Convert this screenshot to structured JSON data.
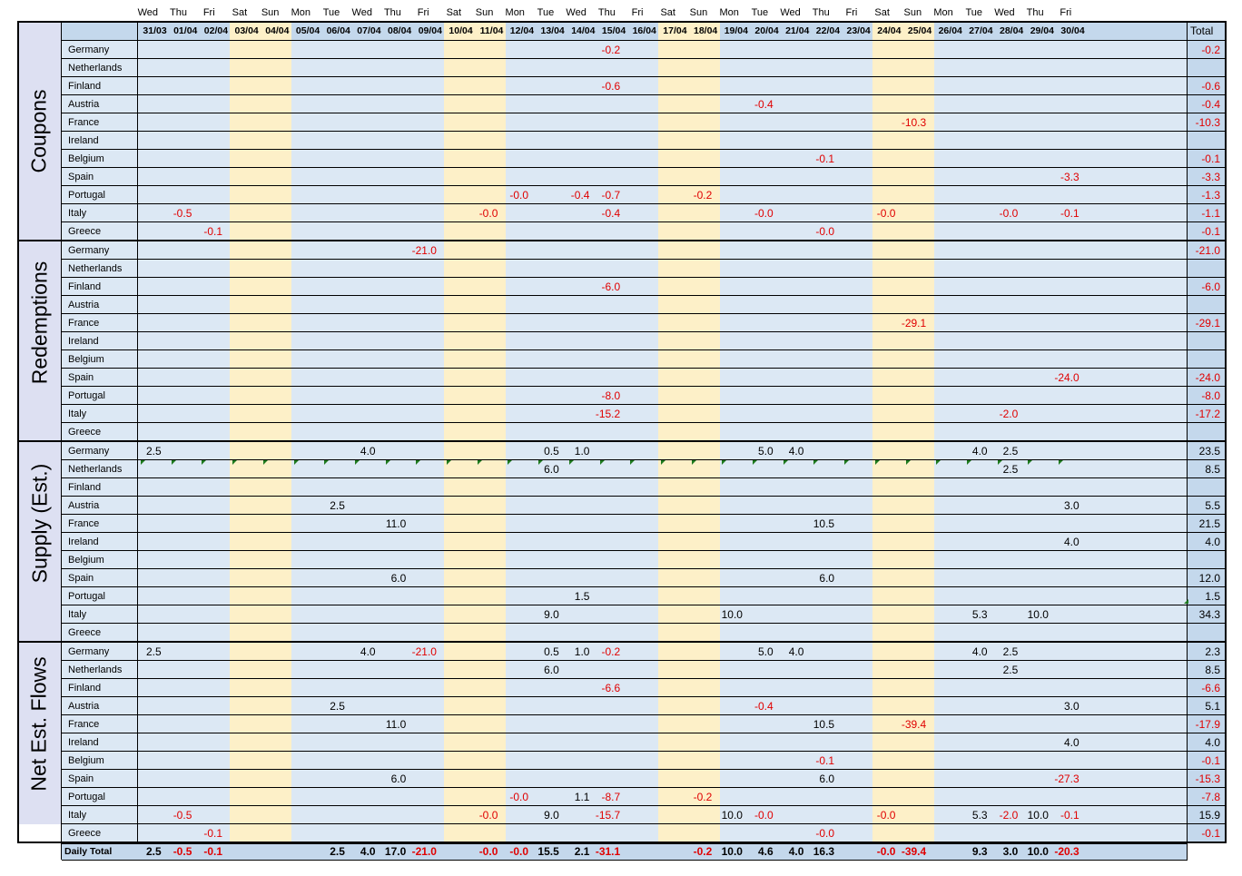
{
  "columns": [
    {
      "day": "Wed",
      "date": "31/03",
      "weekend": false
    },
    {
      "day": "Thu",
      "date": "01/04",
      "weekend": false
    },
    {
      "day": "Fri",
      "date": "02/04",
      "weekend": false
    },
    {
      "day": "Sat",
      "date": "03/04",
      "weekend": true
    },
    {
      "day": "Sun",
      "date": "04/04",
      "weekend": true
    },
    {
      "day": "Mon",
      "date": "05/04",
      "weekend": false
    },
    {
      "day": "Tue",
      "date": "06/04",
      "weekend": false
    },
    {
      "day": "Wed",
      "date": "07/04",
      "weekend": false
    },
    {
      "day": "Thu",
      "date": "08/04",
      "weekend": false
    },
    {
      "day": "Fri",
      "date": "09/04",
      "weekend": false
    },
    {
      "day": "Sat",
      "date": "10/04",
      "weekend": true
    },
    {
      "day": "Sun",
      "date": "11/04",
      "weekend": true
    },
    {
      "day": "Mon",
      "date": "12/04",
      "weekend": false
    },
    {
      "day": "Tue",
      "date": "13/04",
      "weekend": false
    },
    {
      "day": "Wed",
      "date": "14/04",
      "weekend": false
    },
    {
      "day": "Thu",
      "date": "15/04",
      "weekend": false
    },
    {
      "day": "Fri",
      "date": "16/04",
      "weekend": false
    },
    {
      "day": "Sat",
      "date": "17/04",
      "weekend": true
    },
    {
      "day": "Sun",
      "date": "18/04",
      "weekend": true
    },
    {
      "day": "Mon",
      "date": "19/04",
      "weekend": false
    },
    {
      "day": "Tue",
      "date": "20/04",
      "weekend": false
    },
    {
      "day": "Wed",
      "date": "21/04",
      "weekend": false
    },
    {
      "day": "Thu",
      "date": "22/04",
      "weekend": false
    },
    {
      "day": "Fri",
      "date": "23/04",
      "weekend": false
    },
    {
      "day": "Sat",
      "date": "24/04",
      "weekend": true
    },
    {
      "day": "Sun",
      "date": "25/04",
      "weekend": true
    },
    {
      "day": "Mon",
      "date": "26/04",
      "weekend": false
    },
    {
      "day": "Tue",
      "date": "27/04",
      "weekend": false
    },
    {
      "day": "Wed",
      "date": "28/04",
      "weekend": false
    },
    {
      "day": "Thu",
      "date": "29/04",
      "weekend": false
    },
    {
      "day": "Fri",
      "date": "30/04",
      "weekend": false
    }
  ],
  "total_header": "Total",
  "countries": [
    "Germany",
    "Netherlands",
    "Finland",
    "Austria",
    "France",
    "Ireland",
    "Belgium",
    "Spain",
    "Portugal",
    "Italy",
    "Greece"
  ],
  "sections": [
    {
      "label": "Coupons",
      "rows": [
        {
          "cells": {
            "15": "-0.2"
          },
          "total": "-0.2"
        },
        {
          "cells": {},
          "total": ""
        },
        {
          "cells": {
            "15": "-0.6"
          },
          "total": "-0.6"
        },
        {
          "cells": {
            "20": "-0.4"
          },
          "total": "-0.4"
        },
        {
          "cells": {
            "25": "-10.3"
          },
          "total": "-10.3"
        },
        {
          "cells": {},
          "total": ""
        },
        {
          "cells": {
            "22": "-0.1"
          },
          "total": "-0.1"
        },
        {
          "cells": {
            "30": "-3.3"
          },
          "total": "-3.3"
        },
        {
          "cells": {
            "12": "-0.0",
            "14": "-0.4",
            "15": "-0.7",
            "18": "-0.2"
          },
          "total": "-1.3"
        },
        {
          "cells": {
            "1": "-0.5",
            "11": "-0.0",
            "15": "-0.4",
            "20": "-0.0",
            "24": "-0.0",
            "28": "-0.0",
            "30": "-0.1"
          },
          "total": "-1.1"
        },
        {
          "cells": {
            "2": "-0.1",
            "22": "-0.0"
          },
          "total": "-0.1"
        }
      ]
    },
    {
      "label": "Redemptions",
      "rows": [
        {
          "cells": {
            "9": "-21.0"
          },
          "total": "-21.0"
        },
        {
          "cells": {},
          "total": ""
        },
        {
          "cells": {
            "15": "-6.0"
          },
          "total": "-6.0"
        },
        {
          "cells": {},
          "total": ""
        },
        {
          "cells": {
            "25": "-29.1"
          },
          "total": "-29.1"
        },
        {
          "cells": {},
          "total": ""
        },
        {
          "cells": {},
          "total": ""
        },
        {
          "cells": {
            "30": "-24.0"
          },
          "total": "-24.0"
        },
        {
          "cells": {
            "15": "-8.0"
          },
          "total": "-8.0"
        },
        {
          "cells": {
            "15": "-15.2",
            "28": "-2.0"
          },
          "total": "-17.2"
        },
        {
          "cells": {},
          "total": ""
        }
      ]
    },
    {
      "label": "Supply (Est.)",
      "rows": [
        {
          "cells": {
            "0": "2.5",
            "7": "4.0",
            "13": "0.5",
            "14": "1.0",
            "20": "5.0",
            "21": "4.0",
            "27": "4.0",
            "28": "2.5"
          },
          "total": "23.5"
        },
        {
          "cells": {
            "13": "6.0",
            "28": "2.5"
          },
          "total": "8.5"
        },
        {
          "cells": {},
          "total": ""
        },
        {
          "cells": {
            "6": "2.5",
            "30": "3.0"
          },
          "total": "5.5"
        },
        {
          "cells": {
            "8": "11.0",
            "22": "10.5"
          },
          "total": "21.5"
        },
        {
          "cells": {
            "30": "4.0"
          },
          "total": "4.0"
        },
        {
          "cells": {},
          "total": ""
        },
        {
          "cells": {
            "8": "6.0",
            "22": "6.0"
          },
          "total": "12.0"
        },
        {
          "cells": {
            "14": "1.5"
          },
          "total": "1.5"
        },
        {
          "cells": {
            "13": "9.0",
            "19": "10.0",
            "27": "5.3",
            "29": "10.0"
          },
          "total": "34.3"
        },
        {
          "cells": {},
          "total": ""
        }
      ]
    },
    {
      "label": "Net Est. Flows",
      "rows": [
        {
          "cells": {
            "0": "2.5",
            "7": "4.0",
            "9": "-21.0",
            "13": "0.5",
            "14": "1.0",
            "15": "-0.2",
            "20": "5.0",
            "21": "4.0",
            "27": "4.0",
            "28": "2.5"
          },
          "total": "2.3"
        },
        {
          "cells": {
            "13": "6.0",
            "28": "2.5"
          },
          "total": "8.5"
        },
        {
          "cells": {
            "15": "-6.6"
          },
          "total": "-6.6"
        },
        {
          "cells": {
            "6": "2.5",
            "20": "-0.4",
            "30": "3.0"
          },
          "total": "5.1"
        },
        {
          "cells": {
            "8": "11.0",
            "22": "10.5",
            "25": "-39.4"
          },
          "total": "-17.9"
        },
        {
          "cells": {
            "30": "4.0"
          },
          "total": "4.0"
        },
        {
          "cells": {
            "22": "-0.1"
          },
          "total": "-0.1"
        },
        {
          "cells": {
            "8": "6.0",
            "22": "6.0",
            "30": "-27.3"
          },
          "total": "-15.3"
        },
        {
          "cells": {
            "12": "-0.0",
            "14": "1.1",
            "15": "-8.7",
            "18": "-0.2"
          },
          "total": "-7.8"
        },
        {
          "cells": {
            "1": "-0.5",
            "11": "-0.0",
            "13": "9.0",
            "15": "-15.7",
            "19": "10.0",
            "20": "-0.0",
            "24": "-0.0",
            "27": "5.3",
            "28": "-2.0",
            "29": "10.0",
            "30": "-0.1"
          },
          "total": "15.9"
        },
        {
          "cells": {
            "2": "-0.1",
            "22": "-0.0"
          },
          "total": "-0.1"
        }
      ]
    }
  ],
  "daily_total": {
    "label": "Daily Total",
    "cells": {
      "0": "2.5",
      "1": "-0.5",
      "2": "-0.1",
      "6": "2.5",
      "7": "4.0",
      "8": "17.0",
      "9": "-21.0",
      "11": "-0.0",
      "12": "-0.0",
      "13": "15.5",
      "14": "2.1",
      "15": "-31.1",
      "18": "-0.2",
      "19": "10.0",
      "20": "4.6",
      "21": "4.0",
      "22": "16.3",
      "24": "-0.0",
      "25": "-39.4",
      "27": "9.3",
      "28": "3.0",
      "29": "10.0",
      "30": "-20.3"
    }
  },
  "colors": {
    "weekday_fill": "#dce8f4",
    "weekend_fill": "#fdf0c8",
    "label_fill": "#dde0f2",
    "header_fill": "#c4d8ec",
    "negative": "#e00000",
    "flag": "#1e7a1e"
  }
}
